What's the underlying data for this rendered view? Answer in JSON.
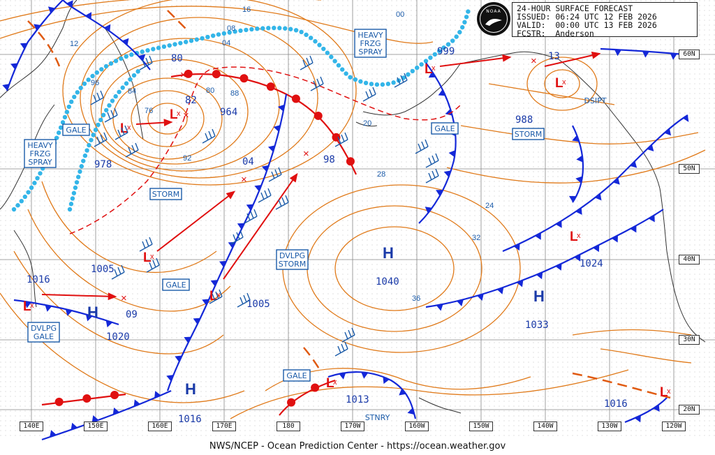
{
  "header": {
    "title": "24-HOUR SURFACE FORECAST",
    "issued": "ISSUED: 06:24 UTC 12 FEB 2026",
    "valid": "VALID:  00:00 UTC 13 FEB 2026",
    "forecaster": "FCSTR:  Anderson",
    "logo_text": "NOAA"
  },
  "footer": "NWS/NCEP - Ocean Prediction Center - https://ocean.weather.gov",
  "longitude_labels": [
    "140E",
    "150E",
    "160E",
    "170E",
    "180",
    "170W",
    "160W",
    "150W",
    "140W",
    "130W",
    "120W"
  ],
  "latitude_labels": [
    "50N",
    "40N",
    "30N",
    "20N"
  ],
  "lat_extra": "60N",
  "colors": {
    "isobar": "#e07a1a",
    "blue": "#1a5aa8",
    "front_blue": "#1428d8",
    "front_red": "#e01010",
    "ice": "#33b5e8",
    "grid": "#555555"
  },
  "pressure_centers": {
    "lows": [
      {
        "value": "964",
        "id": "low-964"
      },
      {
        "value": "978",
        "id": "low-978"
      },
      {
        "value": "988",
        "id": "low-988"
      },
      {
        "value": "999",
        "id": "low-999"
      },
      {
        "value": "1005",
        "id": "low-1005-w"
      },
      {
        "value": "1005",
        "id": "low-1005-c"
      },
      {
        "value": "1013",
        "id": "low-1013"
      },
      {
        "value": "1016",
        "id": "low-1016-e"
      },
      {
        "value": "1016",
        "id": "low-1016-w"
      }
    ],
    "highs": [
      {
        "value": "1040",
        "id": "high-1040"
      },
      {
        "value": "1033",
        "id": "high-1033"
      },
      {
        "value": "1024",
        "id": "high-1024"
      },
      {
        "value": "1020",
        "id": "high-1020"
      },
      {
        "value": "1016",
        "id": "high-1016-s"
      }
    ],
    "small_labels": [
      "80",
      "82",
      "04",
      "98",
      "13",
      "09"
    ]
  },
  "isobar_labels": [
    "16",
    "12",
    "08",
    "04",
    "00",
    "96",
    "92",
    "88",
    "84",
    "80",
    "76",
    "20",
    "24",
    "28",
    "32",
    "36"
  ],
  "warnings": [
    {
      "text": [
        "HEAVY",
        "FRZG",
        "SPRAY"
      ],
      "id": "heavy-frzg-spray-west"
    },
    {
      "text": [
        "HEAVY",
        "FRZG",
        "SPRAY"
      ],
      "id": "heavy-frzg-spray-north"
    },
    {
      "text": [
        "GALE"
      ],
      "id": "gale-west"
    },
    {
      "text": [
        "GALE"
      ],
      "id": "gale-alaska"
    },
    {
      "text": [
        "GALE"
      ],
      "id": "gale-central"
    },
    {
      "text": [
        "GALE"
      ],
      "id": "gale-south"
    },
    {
      "text": [
        "STORM"
      ],
      "id": "storm-west"
    },
    {
      "text": [
        "STORM"
      ],
      "id": "storm-gulf"
    },
    {
      "text": [
        "DVLPG",
        "STORM"
      ],
      "id": "dvlpg-storm"
    },
    {
      "text": [
        "DVLPG",
        "GALE"
      ],
      "id": "dvlpg-gale"
    },
    {
      "text": [
        "DSIPT"
      ],
      "id": "dsipt"
    },
    {
      "text": [
        "STNRY"
      ],
      "id": "stnry"
    }
  ]
}
